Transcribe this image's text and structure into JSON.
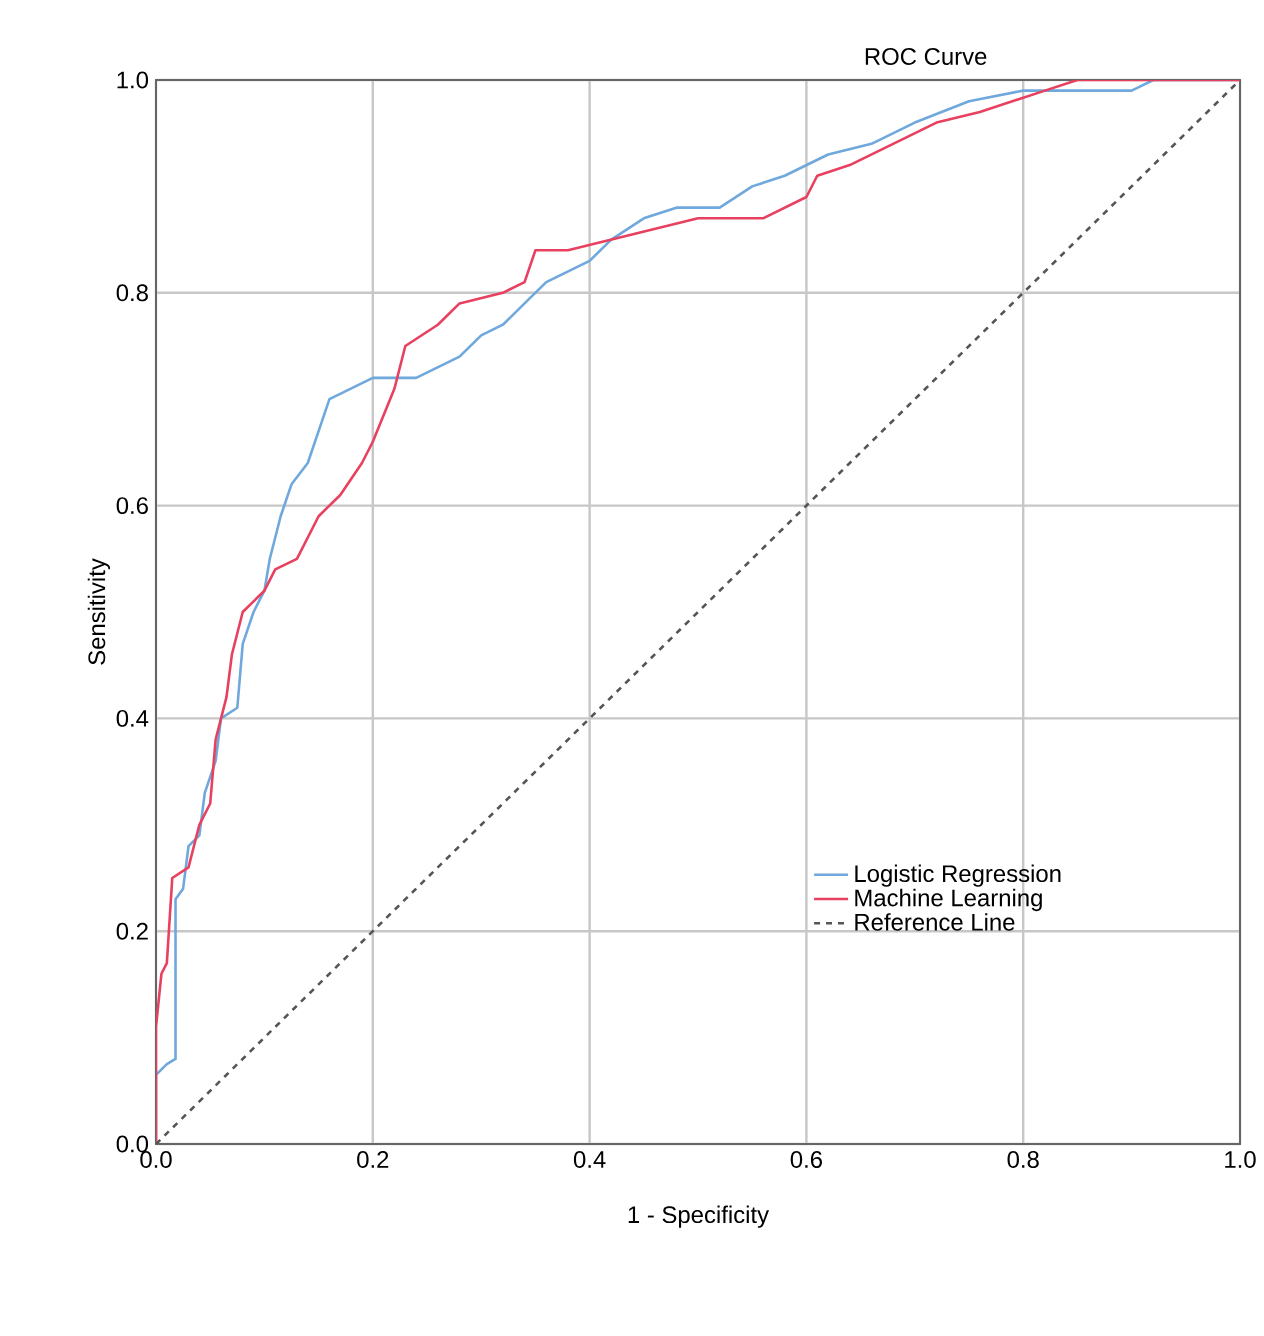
{
  "chart_data": {
    "type": "line",
    "title": "ROC Curve",
    "xlabel": "1 - Specificity",
    "ylabel": "Sensitivity",
    "xlim": [
      0,
      1
    ],
    "ylim": [
      0,
      1
    ],
    "xticks": [
      {
        "value": 0,
        "label": "0.0"
      },
      {
        "value": 0.2,
        "label": "0.2"
      },
      {
        "value": 0.4,
        "label": "0.4"
      },
      {
        "value": 0.6,
        "label": "0.6"
      },
      {
        "value": 0.8,
        "label": "0.8"
      },
      {
        "value": 1,
        "label": "1.0"
      }
    ],
    "yticks": [
      {
        "value": 0,
        "label": "0.0"
      },
      {
        "value": 0.2,
        "label": "0.2"
      },
      {
        "value": 0.4,
        "label": "0.4"
      },
      {
        "value": 0.6,
        "label": "0.6"
      },
      {
        "value": 0.8,
        "label": "0.8"
      },
      {
        "value": 1,
        "label": "1.0"
      }
    ],
    "grid": true,
    "legend": "bottom right",
    "series": [
      {
        "name": "Logistic Regression",
        "color": "#6fa8dc",
        "line_style": "solid",
        "x": [
          0,
          0,
          0.01,
          0.018,
          0.018,
          0.025,
          0.03,
          0.04,
          0.045,
          0.055,
          0.06,
          0.075,
          0.08,
          0.09,
          0.1,
          0.105,
          0.115,
          0.125,
          0.14,
          0.15,
          0.16,
          0.18,
          0.2,
          0.24,
          0.26,
          0.28,
          0.3,
          0.32,
          0.34,
          0.36,
          0.38,
          0.4,
          0.42,
          0.45,
          0.48,
          0.52,
          0.55,
          0.58,
          0.62,
          0.66,
          0.7,
          0.75,
          0.8,
          0.9,
          0.92,
          1
        ],
        "values": [
          0,
          0.065,
          0.075,
          0.08,
          0.23,
          0.24,
          0.28,
          0.29,
          0.33,
          0.36,
          0.4,
          0.41,
          0.47,
          0.5,
          0.52,
          0.55,
          0.59,
          0.62,
          0.64,
          0.67,
          0.7,
          0.71,
          0.72,
          0.72,
          0.73,
          0.74,
          0.76,
          0.77,
          0.79,
          0.81,
          0.82,
          0.83,
          0.85,
          0.87,
          0.88,
          0.88,
          0.9,
          0.91,
          0.93,
          0.94,
          0.96,
          0.98,
          0.99,
          0.99,
          1,
          1
        ]
      },
      {
        "name": "Machine Learning",
        "color": "#e8405f",
        "line_style": "solid",
        "x": [
          0,
          0,
          0.005,
          0.01,
          0.015,
          0.03,
          0.04,
          0.05,
          0.055,
          0.065,
          0.07,
          0.08,
          0.09,
          0.1,
          0.11,
          0.13,
          0.15,
          0.17,
          0.19,
          0.2,
          0.22,
          0.23,
          0.26,
          0.28,
          0.32,
          0.34,
          0.35,
          0.38,
          0.42,
          0.46,
          0.5,
          0.56,
          0.58,
          0.6,
          0.61,
          0.64,
          0.68,
          0.72,
          0.76,
          0.82,
          0.85,
          1
        ],
        "values": [
          0,
          0.11,
          0.16,
          0.17,
          0.25,
          0.26,
          0.3,
          0.32,
          0.38,
          0.42,
          0.46,
          0.5,
          0.51,
          0.52,
          0.54,
          0.55,
          0.59,
          0.61,
          0.64,
          0.66,
          0.71,
          0.75,
          0.77,
          0.79,
          0.8,
          0.81,
          0.84,
          0.84,
          0.85,
          0.86,
          0.87,
          0.87,
          0.88,
          0.89,
          0.91,
          0.92,
          0.94,
          0.96,
          0.97,
          0.99,
          1,
          1
        ]
      },
      {
        "name": "Reference Line",
        "color": "#555555",
        "line_style": "dashed",
        "x": [
          0,
          1
        ],
        "values": [
          0,
          1
        ]
      }
    ]
  }
}
